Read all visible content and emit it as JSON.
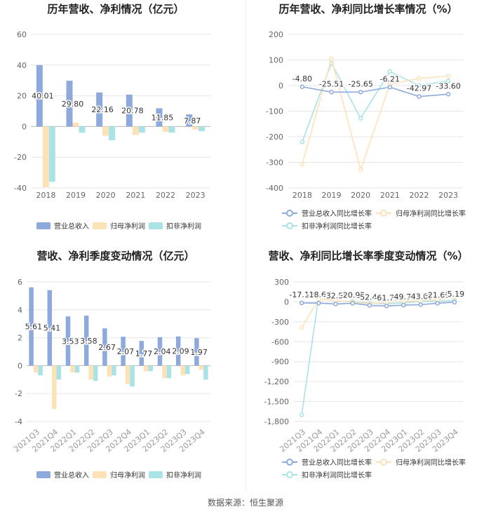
{
  "source": "数据来源：恒生聚源",
  "colors": {
    "revenue": "#8eaadc",
    "net": "#fde2b8",
    "deducted": "#a9e3e6",
    "grid": "#e6e6e6",
    "axis": "#666666"
  },
  "chart_data": [
    {
      "type": "bar",
      "title": "历年营收、净利情况（亿元）",
      "categories": [
        "2018",
        "2019",
        "2020",
        "2021",
        "2022",
        "2023"
      ],
      "ylim": [
        -40,
        60
      ],
      "yticks": [
        "-40",
        "-20",
        "0",
        "20",
        "40",
        "60"
      ],
      "legend_position": "bottom",
      "series": [
        {
          "name": "营业总收入",
          "values": [
            40.01,
            29.8,
            22.16,
            20.78,
            11.85,
            7.87
          ],
          "labels": [
            "40.01",
            "29.80",
            "22.16",
            "20.78",
            "11.85",
            "7.87"
          ]
        },
        {
          "name": "归母净利润",
          "values": [
            -39.5,
            2.5,
            -6.0,
            -5.5,
            -3.5,
            -2.0
          ]
        },
        {
          "name": "扣非净利润",
          "values": [
            -36.0,
            -4.0,
            -9.0,
            -4.0,
            -4.0,
            -3.0
          ]
        }
      ]
    },
    {
      "type": "line",
      "title": "历年营收、净利同比增长率情况（%）",
      "categories": [
        "2018",
        "2019",
        "2020",
        "2021",
        "2022",
        "2023"
      ],
      "ylim": [
        -400,
        200
      ],
      "yticks": [
        "-400",
        "-300",
        "-200",
        "-100",
        "0",
        "100",
        "200"
      ],
      "legend_position": "bottom",
      "series": [
        {
          "name": "营业总收入同比增长率",
          "values": [
            -4.8,
            -25.51,
            -25.65,
            -6.21,
            -42.97,
            -33.6
          ],
          "labels": [
            "-4.80",
            "-25.51",
            "-25.65",
            "-6.21",
            "-42.97",
            "-33.60"
          ]
        },
        {
          "name": "归母净利润同比增长率",
          "values": [
            -308,
            105,
            -328,
            5,
            28,
            37
          ]
        },
        {
          "name": "扣非净利润同比增长率",
          "values": [
            -220,
            88,
            -128,
            55,
            0,
            18
          ]
        }
      ]
    },
    {
      "type": "bar",
      "title": "营收、净利季度变动情况（亿元）",
      "categories": [
        "2021Q3",
        "2021Q4",
        "2022Q1",
        "2022Q2",
        "2022Q3",
        "2022Q4",
        "2023Q1",
        "2023Q2",
        "2023Q3",
        "2023Q4"
      ],
      "ylim": [
        -4,
        6
      ],
      "yticks": [
        "-4",
        "-2",
        "0",
        "2",
        "4",
        "6"
      ],
      "legend_position": "bottom",
      "series": [
        {
          "name": "营业总收入",
          "values": [
            5.61,
            5.41,
            3.53,
            3.58,
            2.67,
            2.07,
            1.77,
            2.04,
            2.09,
            1.97
          ],
          "labels": [
            "5.61",
            "5.41",
            "3.53",
            "3.58",
            "2.67",
            "2.07",
            "1.77",
            "2.04",
            "2.09",
            "1.97"
          ]
        },
        {
          "name": "归母净利润",
          "values": [
            -0.5,
            -3.1,
            -0.5,
            -1.0,
            -0.8,
            -1.3,
            -0.4,
            -0.9,
            -0.7,
            -0.3
          ]
        },
        {
          "name": "扣非净利润",
          "values": [
            -0.7,
            -1.0,
            -0.5,
            -1.1,
            -0.7,
            -1.5,
            -0.4,
            -0.9,
            -0.6,
            -1.0
          ]
        }
      ]
    },
    {
      "type": "line",
      "title": "营收、净利同比增长率季度变动情况（%）",
      "categories": [
        "2021Q3",
        "2021Q4",
        "2022Q1",
        "2022Q2",
        "2022Q3",
        "2022Q4",
        "2023Q1",
        "2023Q2",
        "2023Q3",
        "2023Q4"
      ],
      "ylim": [
        -1800,
        300
      ],
      "yticks": [
        "-1,800",
        "-1,500",
        "-1,200",
        "-900",
        "-600",
        "-300",
        "0",
        "300"
      ],
      "legend_position": "bottom",
      "series": [
        {
          "name": "营业总收入同比增长率",
          "values": [
            -17.12,
            -18.67,
            -32.55,
            -20.92,
            -52.4,
            -61.71,
            -49.76,
            -43.05,
            -21.61,
            -5.19
          ],
          "labels": [
            "-17.12",
            "-18.67",
            "-32.55",
            "-20.92",
            "-52.40",
            "-61.71",
            "-49.76",
            "-43.05",
            "-21.61",
            "-5.19"
          ]
        },
        {
          "name": "归母净利润同比增长率",
          "values": [
            -390,
            40,
            20,
            -5,
            -30,
            -10,
            10,
            15,
            30,
            75
          ]
        },
        {
          "name": "扣非净利润同比增长率",
          "values": [
            -1700,
            80,
            10,
            5,
            -20,
            -30,
            -15,
            5,
            10,
            20
          ]
        }
      ]
    }
  ]
}
